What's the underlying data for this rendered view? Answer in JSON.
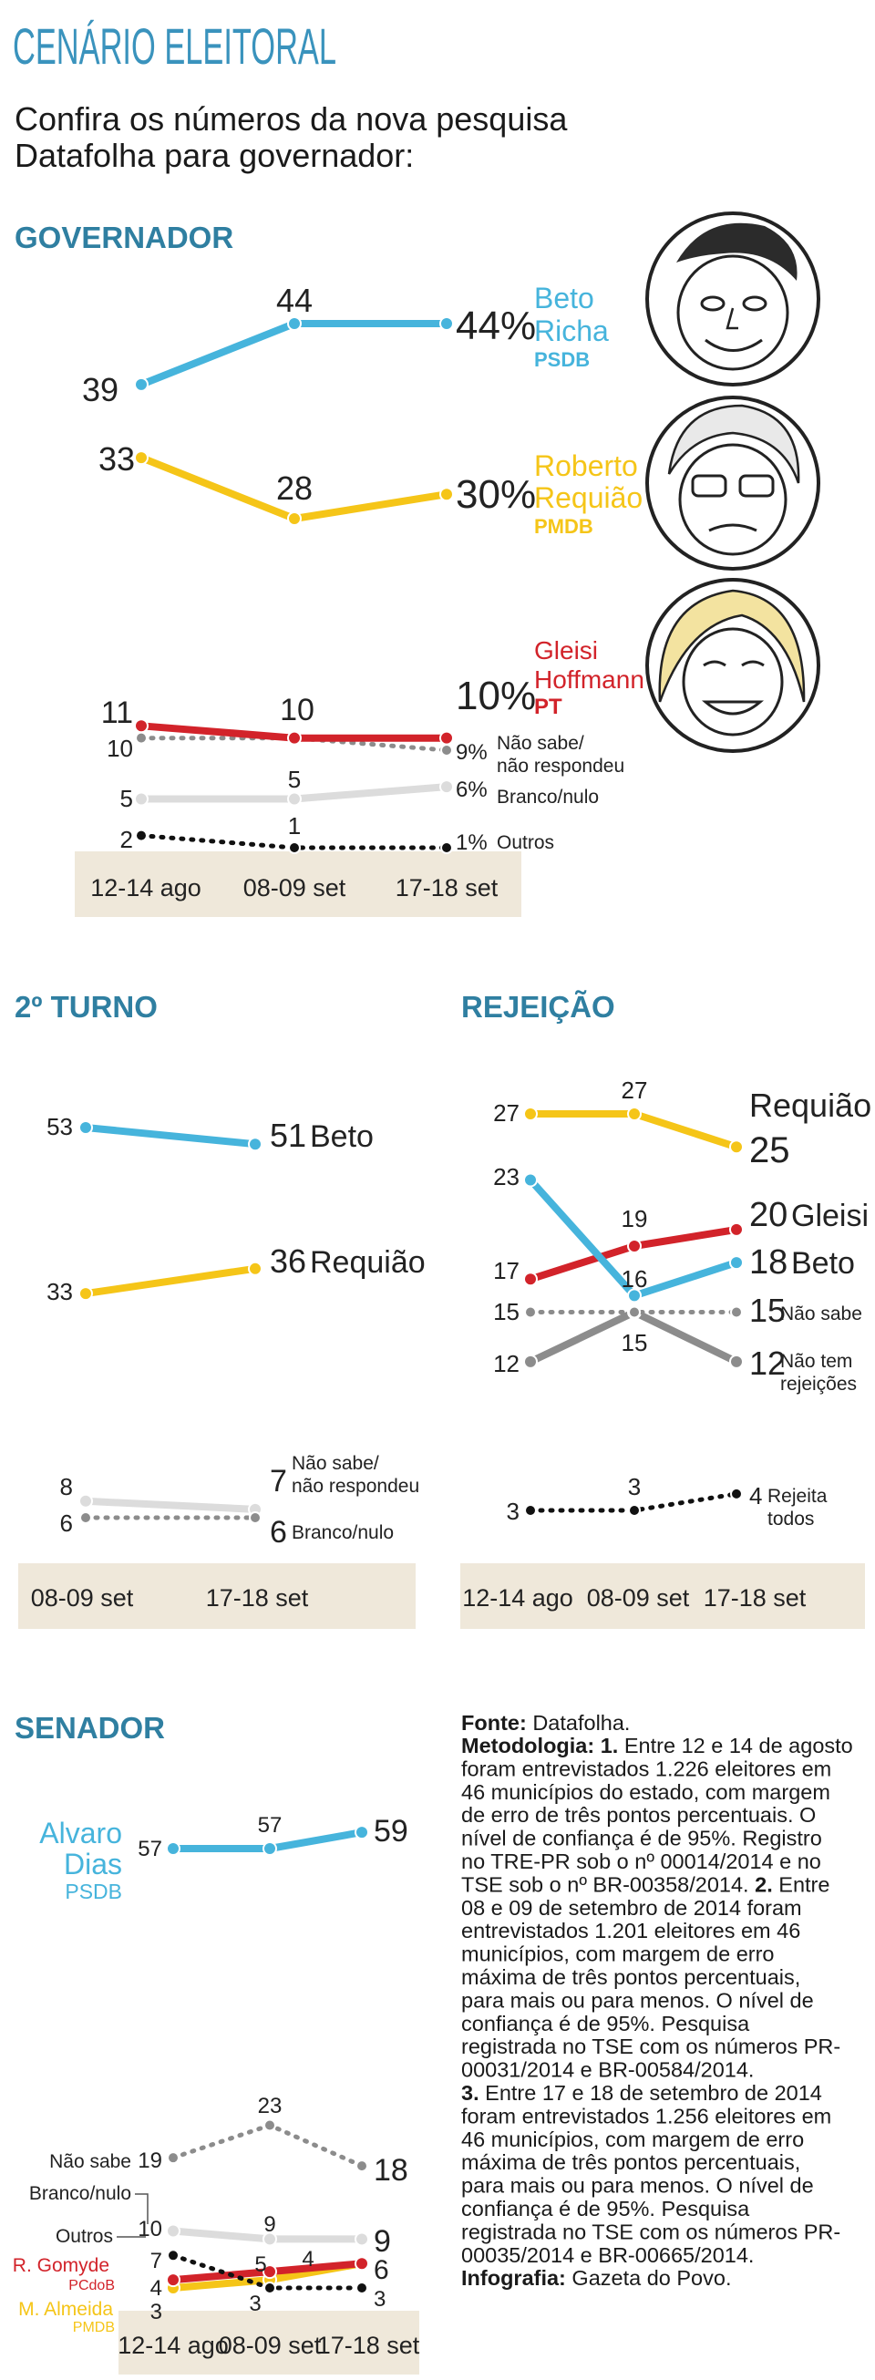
{
  "header": {
    "title": "CENÁRIO ELEITORAL",
    "subtitle_lines": [
      "Confira os números da nova pesquisa",
      "Datafolha para governador:"
    ]
  },
  "colors": {
    "blue": "#46b4dc",
    "yellow": "#f5c518",
    "red": "#d2232a",
    "gray": "#8c8c8c",
    "lightgray": "#dcdcdc",
    "black": "#111111",
    "section": "#2f7fa1",
    "axis_band": "#efe8da"
  },
  "chart_data": [
    {
      "id": "governador",
      "type": "line",
      "title": "GOVERNADOR",
      "categories": [
        "12-14 ago",
        "08-09 set",
        "17-18 set"
      ],
      "series": [
        {
          "key": "beto",
          "name_lines": [
            "Beto",
            "Richa"
          ],
          "party": "PSDB",
          "values": [
            39,
            44,
            44
          ],
          "final_label": "44%",
          "point_labels": [
            "39",
            "44"
          ],
          "color": "blue",
          "style": "solid"
        },
        {
          "key": "requiao",
          "name_lines": [
            "Roberto",
            "Requião"
          ],
          "party": "PMDB",
          "values": [
            33,
            28,
            30
          ],
          "final_label": "30%",
          "point_labels": [
            "33",
            "28"
          ],
          "color": "yellow",
          "style": "solid"
        },
        {
          "key": "gleisi",
          "name_lines": [
            "Gleisi",
            "Hoffmann"
          ],
          "party": "PT",
          "values": [
            11,
            10,
            10
          ],
          "final_label": "10%",
          "point_labels": [
            "11",
            "10"
          ],
          "color": "red",
          "style": "solid"
        },
        {
          "key": "naosabe",
          "name_lines": [
            "Não sabe/",
            "não respondeu"
          ],
          "values": [
            10,
            10,
            9
          ],
          "final_label": "9%",
          "point_labels": [
            "10",
            ""
          ],
          "color": "gray",
          "style": "dotted"
        },
        {
          "key": "branco",
          "name_lines": [
            "Branco/nulo"
          ],
          "values": [
            5,
            5,
            6
          ],
          "final_label": "6%",
          "point_labels": [
            "5",
            "5"
          ],
          "color": "lightgray",
          "style": "solid"
        },
        {
          "key": "outros",
          "name_lines": [
            "Outros"
          ],
          "values": [
            2,
            1,
            1
          ],
          "final_label": "1%",
          "point_labels": [
            "2",
            "1"
          ],
          "color": "black",
          "style": "dotted"
        }
      ]
    },
    {
      "id": "segundo_turno",
      "type": "line",
      "title": "2º TURNO",
      "categories": [
        "08-09 set",
        "17-18 set"
      ],
      "series": [
        {
          "key": "beto",
          "name_lines": [
            "Beto"
          ],
          "values": [
            53,
            51
          ],
          "start_label": "53",
          "end_label": "51",
          "color": "blue",
          "style": "solid"
        },
        {
          "key": "requiao",
          "name_lines": [
            "Requião"
          ],
          "values": [
            33,
            36
          ],
          "start_label": "33",
          "end_label": "36",
          "color": "yellow",
          "style": "solid"
        },
        {
          "key": "naosabe",
          "name_lines": [
            "Não sabe/",
            "não respondeu"
          ],
          "values": [
            8,
            7
          ],
          "start_label": "8",
          "end_label": "7",
          "color": "lightgray",
          "style": "solid"
        },
        {
          "key": "branco",
          "name_lines": [
            "Branco/nulo"
          ],
          "values": [
            6,
            6
          ],
          "start_label": "6",
          "end_label": "6",
          "color": "gray",
          "style": "dotted"
        }
      ]
    },
    {
      "id": "rejeicao",
      "type": "line",
      "title": "REJEIÇÃO",
      "categories": [
        "12-14 ago",
        "08-09 set",
        "17-18 set"
      ],
      "series": [
        {
          "key": "requiao",
          "name_lines": [
            "Requião"
          ],
          "values": [
            27,
            27,
            25
          ],
          "point_labels": [
            "27",
            "27"
          ],
          "end_label": "25",
          "color": "yellow",
          "style": "solid"
        },
        {
          "key": "beto",
          "name_lines": [
            "Beto"
          ],
          "values": [
            23,
            16,
            18
          ],
          "point_labels": [
            "23",
            "16"
          ],
          "end_label": "18",
          "color": "blue",
          "style": "solid"
        },
        {
          "key": "gleisi",
          "name_lines": [
            "Gleisi"
          ],
          "values": [
            17,
            19,
            20
          ],
          "point_labels": [
            "17",
            "19"
          ],
          "end_label": "20",
          "color": "red",
          "style": "solid"
        },
        {
          "key": "naosabe",
          "name_lines": [
            "Não sabe"
          ],
          "values": [
            15,
            15,
            15
          ],
          "point_labels": [
            "15",
            ""
          ],
          "end_label": "15",
          "color": "gray",
          "style": "dotted"
        },
        {
          "key": "naotem",
          "name_lines": [
            "Não tem",
            "rejeições"
          ],
          "values": [
            12,
            15,
            12
          ],
          "point_labels": [
            "12",
            "15"
          ],
          "end_label": "12",
          "color": "gray",
          "style": "solid"
        },
        {
          "key": "rejeita",
          "name_lines": [
            "Rejeita",
            "todos"
          ],
          "values": [
            3,
            3,
            4
          ],
          "point_labels": [
            "3",
            "3"
          ],
          "end_label": "4",
          "color": "black",
          "style": "dotted"
        }
      ]
    },
    {
      "id": "senador",
      "type": "line",
      "title": "SENADOR",
      "categories": [
        "12-14 ago",
        "08-09 set",
        "17-18 set"
      ],
      "series": [
        {
          "key": "alvaro",
          "name_lines": [
            "Alvaro",
            "Dias"
          ],
          "party": "PSDB",
          "values": [
            57,
            57,
            59
          ],
          "point_labels": [
            "57",
            "57"
          ],
          "end_label": "59",
          "color": "blue",
          "style": "solid"
        },
        {
          "key": "naosabe",
          "name_lines": [
            "Não sabe"
          ],
          "values": [
            19,
            23,
            18
          ],
          "point_labels": [
            "19",
            "23"
          ],
          "end_label": "18",
          "color": "gray",
          "style": "dotted"
        },
        {
          "key": "branco",
          "name_lines": [
            "Branco/nulo"
          ],
          "values": [
            10,
            9,
            9
          ],
          "point_labels": [
            "10",
            "9"
          ],
          "end_label": "9",
          "color": "lightgray",
          "style": "solid"
        },
        {
          "key": "outros",
          "name_lines": [
            "Outros"
          ],
          "values": [
            7,
            3,
            3
          ],
          "point_labels": [
            "7",
            "3"
          ],
          "end_label": "3",
          "color": "black",
          "style": "dotted"
        },
        {
          "key": "gomyde",
          "name_lines": [
            "R. Gomyde"
          ],
          "party": "PCdoB",
          "values": [
            4,
            5,
            6
          ],
          "point_labels": [
            "4",
            "5"
          ],
          "end_label": "6",
          "color": "red",
          "style": "solid"
        },
        {
          "key": "almeida",
          "name_lines": [
            "M. Almeida"
          ],
          "party": "PMDB",
          "values": [
            3,
            4,
            6
          ],
          "point_labels": [
            "3",
            "4"
          ],
          "end_label": "",
          "color": "yellow",
          "style": "solid"
        }
      ]
    }
  ],
  "notes": {
    "fonte_label": "Fonte:",
    "fonte_value": " Datafolha.",
    "metodologia_label": "Metodologia:",
    "lines": [
      [
        {
          "b": "Metodologia:"
        },
        {
          "t": " "
        },
        {
          "b": "1."
        },
        {
          "t": " Entre 12 e 14 de agosto"
        }
      ],
      [
        {
          "t": "foram entrevistados 1.226 eleitores em"
        }
      ],
      [
        {
          "t": "46 municípios do estado, com margem"
        }
      ],
      [
        {
          "t": "de erro de três pontos percentuais. O"
        }
      ],
      [
        {
          "t": "nível de confiança é de 95%. Registro"
        }
      ],
      [
        {
          "t": "no TRE-PR sob o nº 00014/2014 e no"
        }
      ],
      [
        {
          "t": "TSE sob o nº BR-00358/2014. "
        },
        {
          "b": "2."
        },
        {
          "t": " Entre"
        }
      ],
      [
        {
          "t": "08 e 09 de setembro de 2014 foram"
        }
      ],
      [
        {
          "t": "entrevistados 1.201 eleitores em 46"
        }
      ],
      [
        {
          "t": "municípios, com margem de erro"
        }
      ],
      [
        {
          "t": "máxima de três pontos percentuais,"
        }
      ],
      [
        {
          "t": "para mais ou para menos. O nível de"
        }
      ],
      [
        {
          "t": "confiança é de 95%. Pesquisa"
        }
      ],
      [
        {
          "t": "registrada no TSE com os números PR-"
        }
      ],
      [
        {
          "t": "00031/2014 e BR-00584/2014."
        }
      ],
      [
        {
          "b": "3."
        },
        {
          "t": " Entre 17 e 18 de setembro de 2014"
        }
      ],
      [
        {
          "t": "foram entrevistados 1.256 eleitores em"
        }
      ],
      [
        {
          "t": "46 municípios, com margem de erro"
        }
      ],
      [
        {
          "t": "máxima de três pontos percentuais,"
        }
      ],
      [
        {
          "t": "para mais ou para menos. O nível de"
        }
      ],
      [
        {
          "t": "confiança é de 95%. Pesquisa"
        }
      ],
      [
        {
          "t": "registrada no TSE com os números PR-"
        }
      ],
      [
        {
          "t": "00035/2014 e BR-00665/2014."
        }
      ],
      [
        {
          "b": "Infografia:"
        },
        {
          "t": " Gazeta do Povo."
        }
      ]
    ]
  }
}
